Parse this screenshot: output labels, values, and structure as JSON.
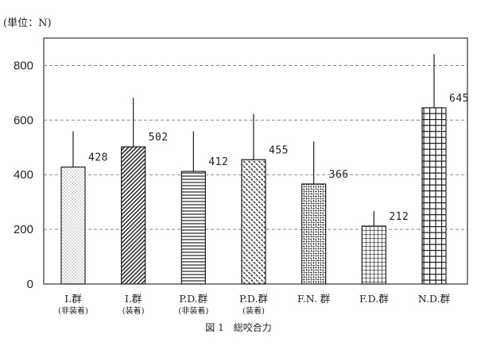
{
  "chart_data": {
    "type": "bar",
    "unit_label": "(単位：N)",
    "caption": "図 1　総咬合力",
    "categories": [
      {
        "label": "I.群",
        "note": "(非装着)"
      },
      {
        "label": "I.群",
        "note": "(装着)"
      },
      {
        "label": "P.D.群",
        "note": "(非装着)"
      },
      {
        "label": "P.D.群",
        "note": "(装着)"
      },
      {
        "label": "F.N. 群"
      },
      {
        "label": "F.D.群"
      },
      {
        "label": "N.D.群"
      }
    ],
    "values": [
      428,
      502,
      412,
      455,
      366,
      212,
      645
    ],
    "error_plus": [
      131,
      179,
      147,
      168,
      156,
      55,
      196
    ],
    "patterns": [
      "dots",
      "diagonal-hatch",
      "horizontal-lines",
      "diagonal-hatch-dashed",
      "weave",
      "fine-grid",
      "grid"
    ],
    "yticks": [
      0,
      200,
      400,
      600,
      800
    ],
    "ylim": [
      0,
      900
    ],
    "grid": true
  }
}
